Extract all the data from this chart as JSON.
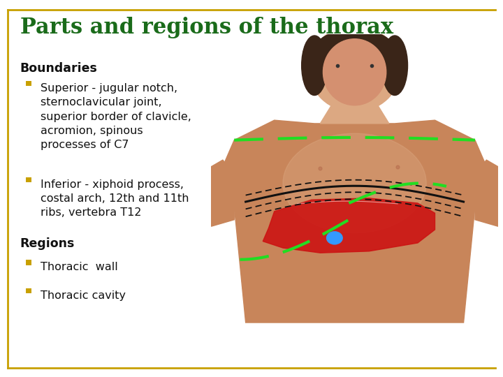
{
  "title": "Parts and regions of the thorax",
  "title_color": "#1a6b1a",
  "title_fontsize": 22,
  "title_fontstyle": "bold",
  "border_color": "#c8a000",
  "bg_color": "#ffffff",
  "text_color": "#111111",
  "bullet_color": "#c8a000",
  "boundaries_header": "Boundaries",
  "regions_header": "Regions",
  "bullet1_lines": [
    "Superior - jugular notch,",
    "sternoclavicular joint,",
    "superior border of clavicle,",
    "acromion, spinous",
    "processes of C7"
  ],
  "bullet2_lines": [
    "Inferior - xiphoid process,",
    "costal arch, 12th and 11th",
    "ribs, vertebra T12"
  ],
  "bullet3": "Thoracic  wall",
  "bullet4": "Thoracic cavity",
  "text_fontsize": 11.5,
  "header_fontsize": 12.5,
  "skin_body": "#c8855a",
  "skin_face": "#d49070",
  "skin_light": "#dca882",
  "hair_color": "#3a2518",
  "red_organ": "#cc1111",
  "blue_dot": "#3399ff",
  "green_dash": "#22dd22",
  "black_line": "#111111"
}
